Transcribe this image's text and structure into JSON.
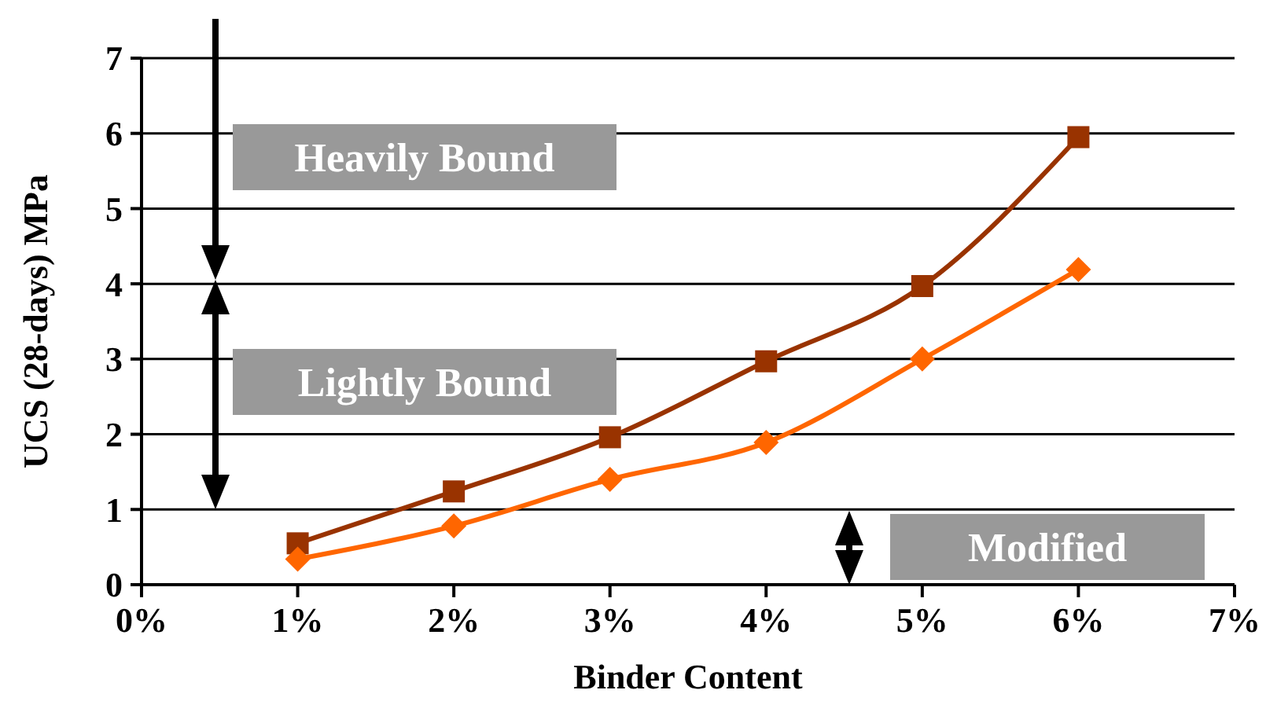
{
  "chart_data": {
    "type": "line",
    "xlabel": "Binder Content",
    "ylabel": "UCS (28-days) MPa",
    "x": [
      1,
      2,
      3,
      4,
      5,
      6
    ],
    "xlim": [
      0,
      7
    ],
    "xticks": [
      {
        "value": 0,
        "label": "0%"
      },
      {
        "value": 1,
        "label": "1%"
      },
      {
        "value": 2,
        "label": "2%"
      },
      {
        "value": 3,
        "label": "3%"
      },
      {
        "value": 4,
        "label": "4%"
      },
      {
        "value": 5,
        "label": "5%"
      },
      {
        "value": 6,
        "label": "6%"
      },
      {
        "value": 7,
        "label": "7%"
      }
    ],
    "ylim": [
      0,
      7
    ],
    "yticks": [
      0,
      1,
      2,
      3,
      4,
      5,
      6,
      7
    ],
    "grid": "y",
    "series": [
      {
        "color": "#993300",
        "marker": "square",
        "values": [
          0.55,
          1.24,
          1.96,
          2.97,
          3.97,
          5.95
        ]
      },
      {
        "color": "#ff6600",
        "marker": "diamond",
        "values": [
          0.34,
          0.78,
          1.4,
          1.89,
          3.0,
          4.19
        ]
      }
    ],
    "annotations": [
      "Heavily Bound",
      "Lightly Bound",
      "Modified"
    ]
  }
}
